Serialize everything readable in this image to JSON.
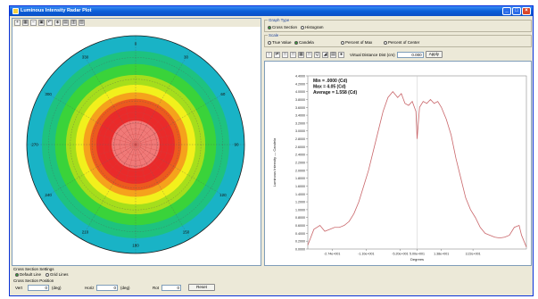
{
  "window": {
    "title": "Luminous Intensity Radar Plot"
  },
  "left_toolbar": {
    "tools": [
      "+",
      "▦",
      "−",
      "▣",
      "↶",
      "◈",
      "▤",
      "▥",
      "▧"
    ]
  },
  "polar": {
    "angle_labels": [
      "0",
      "30",
      "60",
      "90",
      "120",
      "150",
      "180",
      "210",
      "240",
      "270",
      "300",
      "330"
    ],
    "colors": [
      "#19b3c6",
      "#1ec27f",
      "#3ad33a",
      "#a5de1c",
      "#f2f01c",
      "#f5a21c",
      "#ec5a1e",
      "#ea2a2a",
      "#f07a78"
    ]
  },
  "graph_type": {
    "label": "Graph Type",
    "options": [
      "Cross Section",
      "Histogram"
    ],
    "selected": "Cross Section"
  },
  "scale": {
    "label": "Scale",
    "options": [
      "True Value",
      "Candela",
      "Percent of Max",
      "Percent of Center"
    ]
  },
  "plot_controls": {
    "tools": [
      "↑",
      "⇄",
      "□",
      "□",
      "▦",
      "□",
      "Q",
      "◢",
      "▤",
      "●"
    ],
    "distance_label": "Virtual Distance Dist (cm)",
    "distance_value": "0.000",
    "apply_label": "Apply"
  },
  "chart_data": {
    "type": "line",
    "annotations": [
      "Min = .0000 (Cd)",
      "Max = 4.05 (Cd)",
      "Average = 1.558 (Cd)"
    ],
    "ylabel": "Luminous Intensity — Candela",
    "xlabel": "Degrees",
    "y_ticks": [
      "4.4000",
      "4.2000",
      "4.0000",
      "3.8000",
      "3.6000",
      "3.4000",
      "3.2000",
      "3.0000",
      "2.8000",
      "2.6000",
      "2.4000",
      "2.2000",
      "2.0000",
      "1.8000",
      "1.6000",
      "1.4000",
      "1.2000",
      "1.0000",
      "0.8000",
      "0.6000",
      "0.4000",
      "0.2000",
      "0.0000"
    ],
    "x_ticks": [
      "-2.74e+001",
      "-1.10e+001",
      "-5.20e+001",
      "5.00e+001",
      "1.38e+001",
      "3.22e+001"
    ],
    "ylim": [
      0,
      4.4
    ],
    "xlim": [
      -90,
      90
    ],
    "series": [
      {
        "x": [
          -90,
          -85,
          -80,
          -76,
          -72,
          -68,
          -64,
          -60,
          -56,
          -52,
          -48,
          -44,
          -40,
          -36,
          -32,
          -28,
          -24,
          -20,
          -16,
          -13,
          -10,
          -7,
          -4,
          -1,
          0,
          2,
          5,
          8,
          11,
          14,
          17,
          20,
          24,
          28,
          32,
          36,
          40,
          44,
          48,
          52,
          56,
          60,
          64,
          68,
          72,
          76,
          80,
          84,
          86,
          90
        ],
        "y": [
          0.1,
          0.5,
          0.6,
          0.45,
          0.5,
          0.55,
          0.55,
          0.6,
          0.7,
          0.9,
          1.2,
          1.6,
          2.0,
          2.5,
          3.0,
          3.5,
          3.85,
          4.0,
          3.85,
          3.95,
          3.7,
          3.65,
          3.75,
          3.5,
          2.8,
          3.6,
          3.75,
          3.7,
          3.8,
          3.7,
          3.75,
          3.6,
          3.3,
          2.9,
          2.3,
          1.8,
          1.3,
          1.0,
          0.8,
          0.55,
          0.4,
          0.35,
          0.3,
          0.28,
          0.3,
          0.35,
          0.55,
          0.6,
          0.35,
          0.05
        ],
        "color": "#c9666a"
      }
    ]
  },
  "bottom": {
    "settings_label": "Cross Section Settings",
    "settings_options": [
      "Default Line",
      "Grid Lines"
    ],
    "position_label": "Cross Section Position",
    "field1_label": "Vert",
    "field1_value": "0",
    "field1_unit": "(deg)",
    "field2_label": "Horiz",
    "field2_value": "0",
    "field2_unit": "(deg)",
    "field3_label": "Rot",
    "field3_value": "0",
    "reset_label": "Reset"
  }
}
